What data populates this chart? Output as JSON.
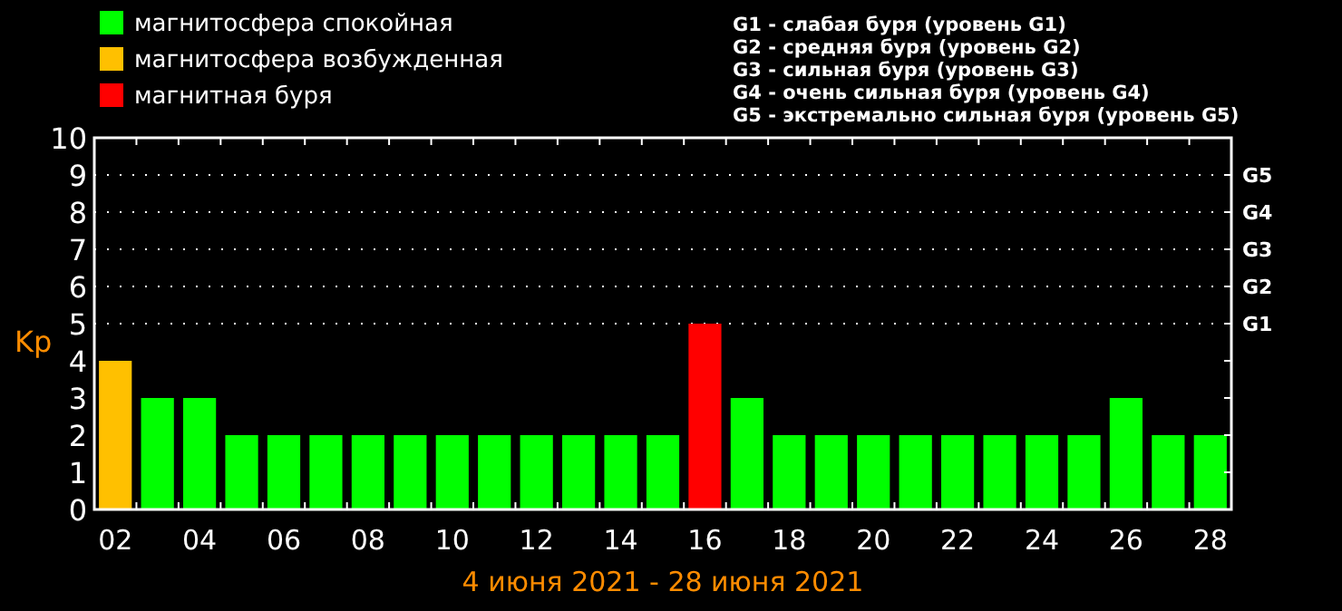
{
  "chart_data": {
    "type": "bar",
    "stacked": true,
    "xlabel": "4 июня 2021 - 28 июня 2021",
    "ylabel": "Kp",
    "categories": [
      "02",
      null,
      "04",
      null,
      "06",
      null,
      "08",
      null,
      "10",
      null,
      "12",
      null,
      "14",
      null,
      "16",
      null,
      "18",
      null,
      "20",
      null,
      "22",
      null,
      "24",
      null,
      "26",
      null,
      "28"
    ],
    "series": [
      {
        "name": "магнитосфера спокойная",
        "color": "#00ff00",
        "values": [
          null,
          3,
          3,
          2,
          2,
          2,
          2,
          2,
          2,
          2,
          2,
          2,
          2,
          2,
          null,
          3,
          2,
          2,
          2,
          2,
          2,
          2,
          2,
          2,
          3,
          2,
          2
        ]
      },
      {
        "name": "магнитосфера возбужденная",
        "color": "#ffc000",
        "values": [
          4,
          null,
          null,
          null,
          null,
          null,
          null,
          null,
          null,
          null,
          null,
          null,
          null,
          null,
          null,
          null,
          null,
          null,
          null,
          null,
          null,
          null,
          null,
          null,
          null,
          null,
          null
        ]
      },
      {
        "name": "магнитная буря",
        "color": "#ff0000",
        "values": [
          null,
          null,
          null,
          null,
          null,
          null,
          null,
          null,
          null,
          null,
          null,
          null,
          null,
          null,
          5,
          null,
          null,
          null,
          null,
          null,
          null,
          null,
          null,
          null,
          null,
          null,
          null
        ]
      }
    ],
    "ylim": [
      0,
      10
    ],
    "yticks": [
      0,
      1,
      2,
      3,
      4,
      5,
      6,
      7,
      8,
      9,
      10
    ],
    "ref_lines": [
      {
        "axis": "y",
        "value": 5,
        "label": "G1",
        "line_style": "dotted"
      },
      {
        "axis": "y",
        "value": 6,
        "label": "G2",
        "line_style": "dotted"
      },
      {
        "axis": "y",
        "value": 7,
        "label": "G3",
        "line_style": "dotted"
      },
      {
        "axis": "y",
        "value": 8,
        "label": "G4",
        "line_style": "dotted"
      },
      {
        "axis": "y",
        "value": 9,
        "label": "G5",
        "line_style": "dotted"
      }
    ],
    "legend": "top left",
    "annotations": [
      "G1 - слабая буря (уровень G1)",
      "G2 - средняя буря (уровень G2)",
      "G3 - сильная буря (уровень G3)",
      "G4 - очень сильная буря (уровень G4)",
      "G5 - экстремально сильная буря (уровень G5)"
    ]
  }
}
